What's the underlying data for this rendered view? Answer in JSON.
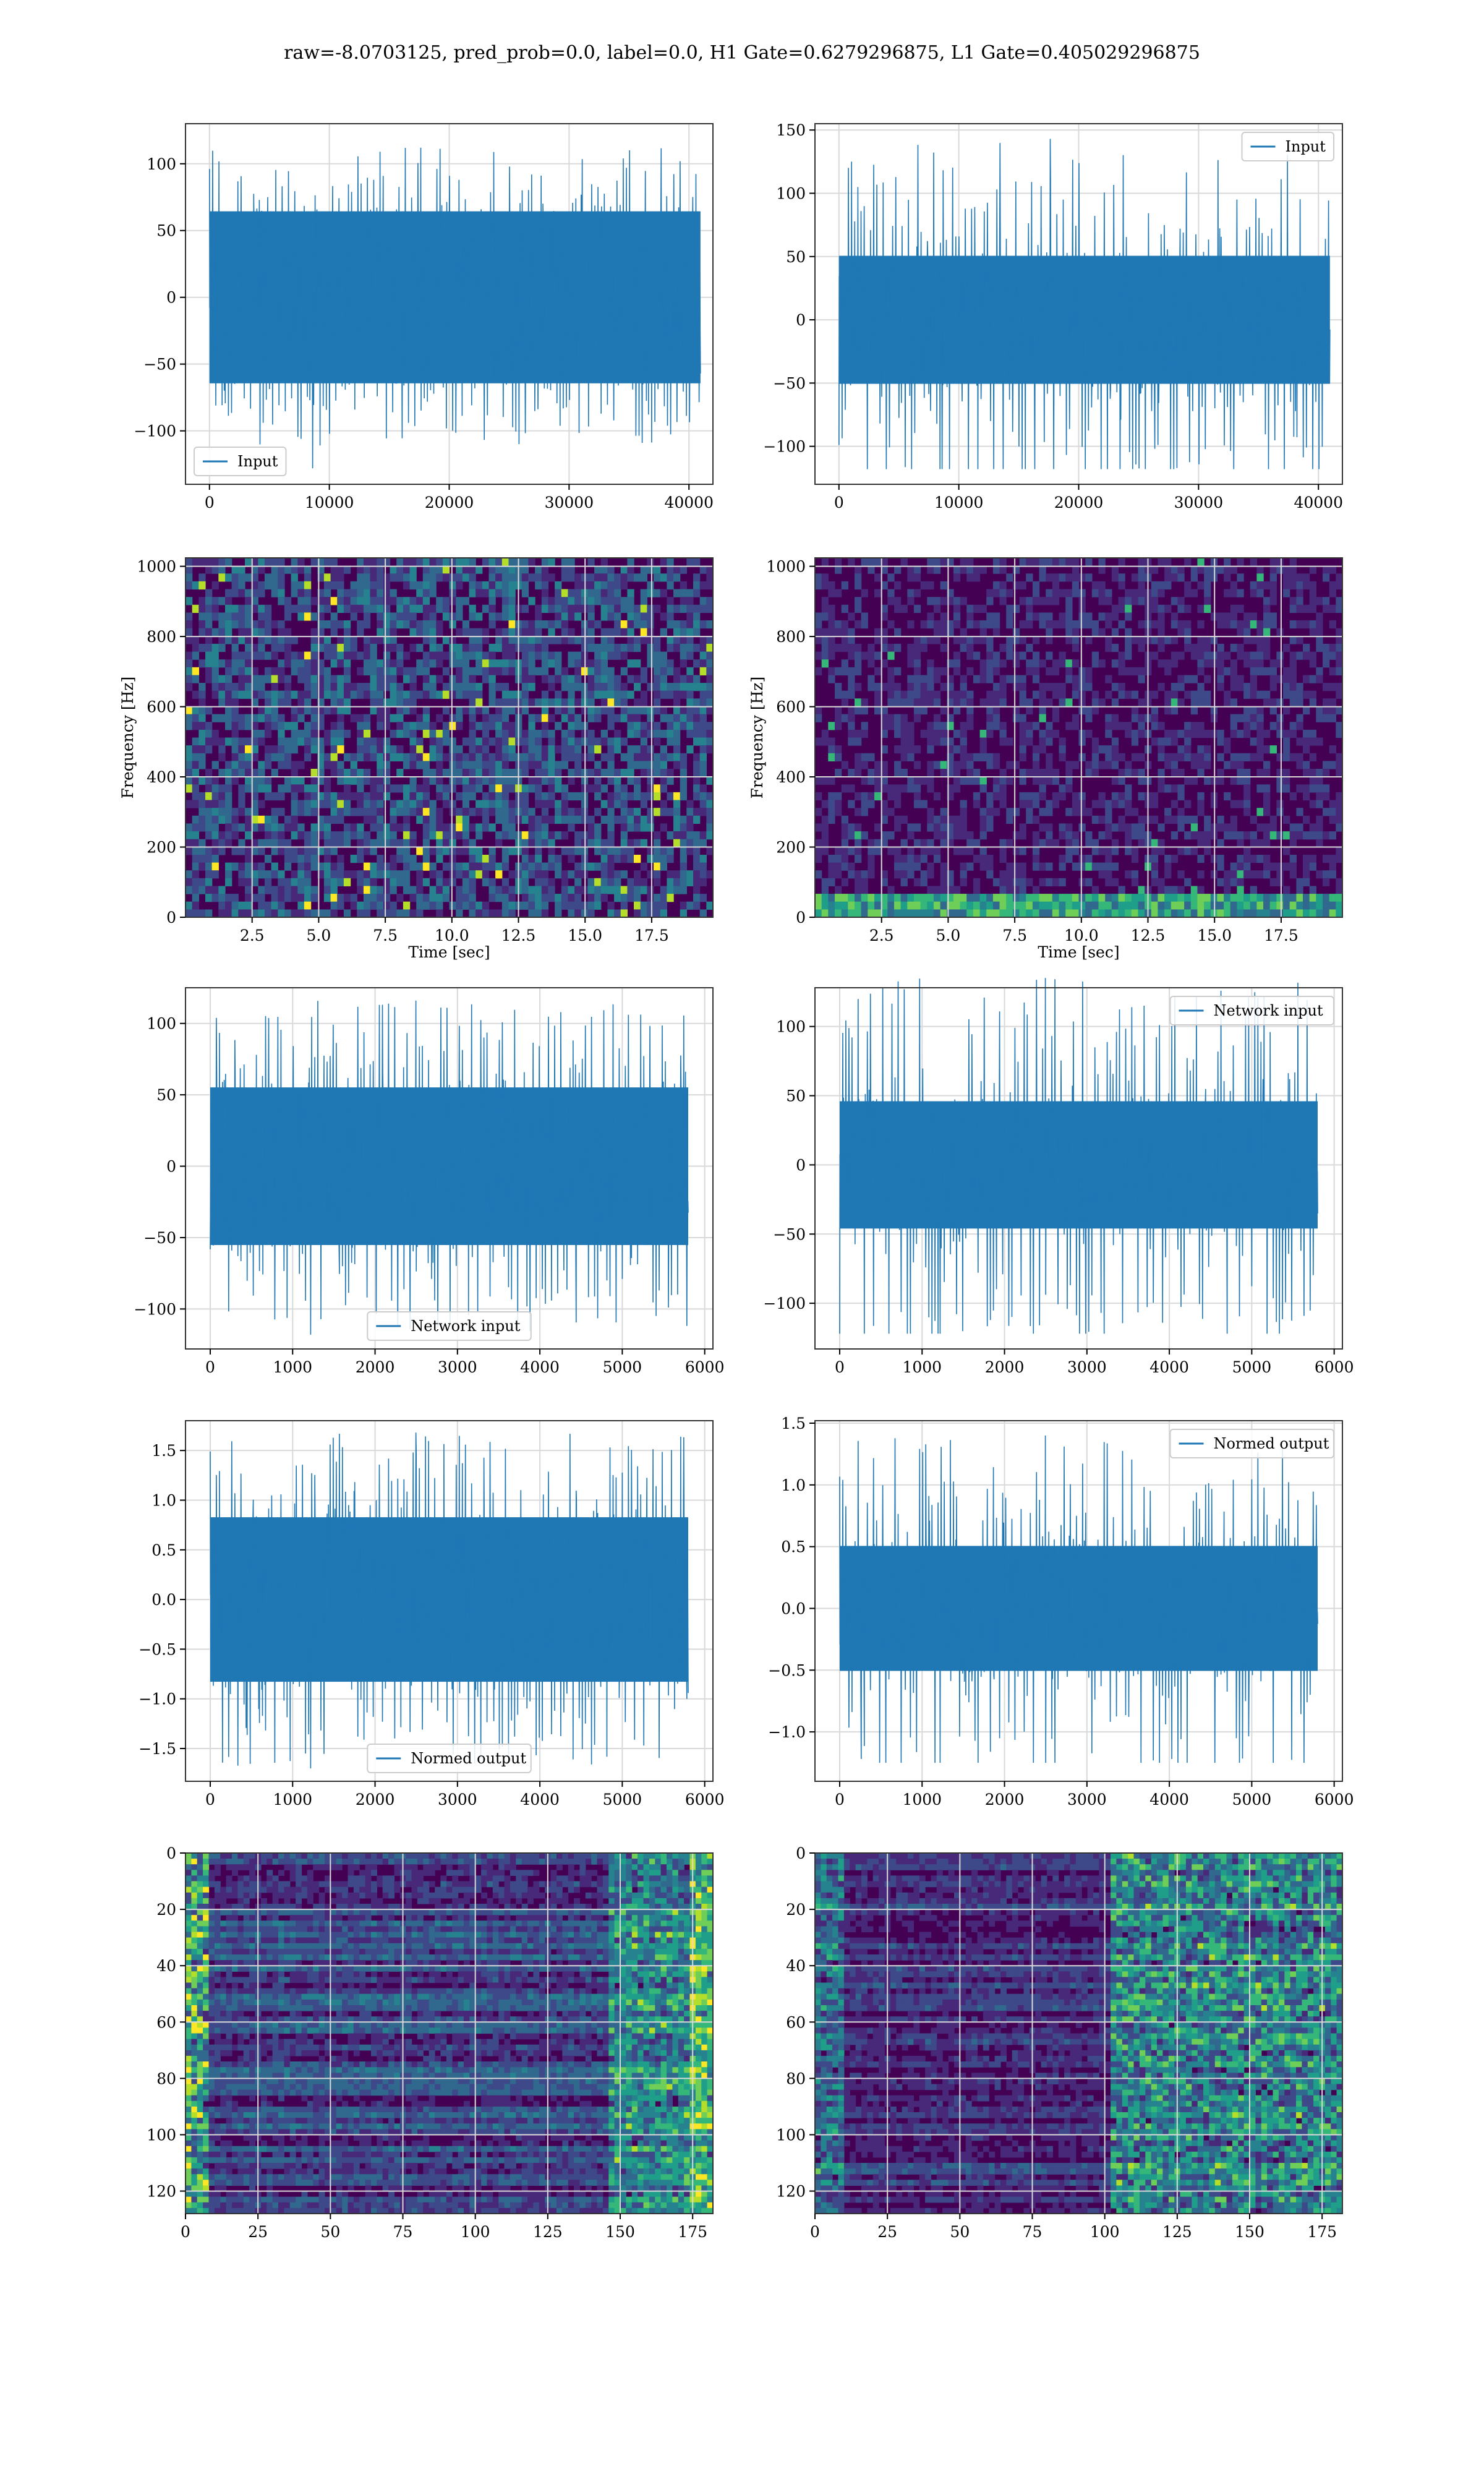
{
  "suptitle": "raw=-8.0703125, pred_prob=0.0, label=0.0, H1 Gate=0.6279296875, L1 Gate=0.405029296875",
  "colors": {
    "line": "#1f77b4",
    "grid": "#d9d9d9",
    "viridis": [
      "#440154",
      "#482878",
      "#3e4989",
      "#31688e",
      "#26828e",
      "#1f9e89",
      "#35b779",
      "#6ece58",
      "#b5de2b",
      "#fde725"
    ]
  },
  "chart_data": [
    {
      "id": "h1-input",
      "type": "line",
      "legend": "Input",
      "legend_loc": "lower-left",
      "xlim": [
        -2000,
        42000
      ],
      "ylim": [
        -140,
        130
      ],
      "xticks": [
        0,
        10000,
        20000,
        30000,
        40000
      ],
      "yticks": [
        -100,
        -50,
        0,
        50,
        100
      ],
      "xdomain": [
        0,
        40960
      ],
      "series": [
        {
          "name": "Input",
          "amplitude": 28,
          "peak_max": 112,
          "peak_min": -128
        }
      ]
    },
    {
      "id": "l1-input",
      "type": "line",
      "legend": "Input",
      "legend_loc": "upper-right",
      "xlim": [
        -2000,
        42000
      ],
      "ylim": [
        -130,
        155
      ],
      "xticks": [
        0,
        10000,
        20000,
        30000,
        40000
      ],
      "yticks": [
        -100,
        -50,
        0,
        50,
        100,
        150
      ],
      "xdomain": [
        0,
        40960
      ],
      "series": [
        {
          "name": "Input",
          "amplitude": 22,
          "peak_max": 143,
          "peak_min": -118
        }
      ]
    },
    {
      "id": "h1-spectrogram",
      "type": "heatmap",
      "xlabel": "Time [sec]",
      "ylabel": "Frequency [Hz]",
      "xlim": [
        0,
        19.8
      ],
      "ylim": [
        0,
        1024
      ],
      "xticks": [
        2.5,
        5.0,
        7.5,
        10.0,
        12.5,
        15.0,
        17.5
      ],
      "yticks": [
        0,
        200,
        400,
        600,
        800,
        1000
      ],
      "intensity": "moderate, uniform noise with bright speckles"
    },
    {
      "id": "l1-spectrogram",
      "type": "heatmap",
      "xlabel": "Time [sec]",
      "ylabel": "Frequency [Hz]",
      "xlim": [
        0,
        19.8
      ],
      "ylim": [
        0,
        1024
      ],
      "xticks": [
        2.5,
        5.0,
        7.5,
        10.0,
        12.5,
        15.0,
        17.5
      ],
      "yticks": [
        0,
        200,
        400,
        600,
        800,
        1000
      ],
      "intensity": "low, with brighter band near 0-40 Hz"
    },
    {
      "id": "h1-network-input",
      "type": "line",
      "legend": "Network input",
      "legend_loc": "lower-center",
      "xlim": [
        -300,
        6100
      ],
      "ylim": [
        -128,
        125
      ],
      "xticks": [
        0,
        1000,
        2000,
        3000,
        4000,
        5000,
        6000
      ],
      "yticks": [
        -100,
        -50,
        0,
        50,
        100
      ],
      "xdomain": [
        0,
        5800
      ],
      "series": [
        {
          "name": "Network input",
          "amplitude": 24,
          "peak_max": 116,
          "peak_min": -118
        }
      ]
    },
    {
      "id": "l1-network-input",
      "type": "line",
      "legend": "Network input",
      "legend_loc": "upper-right",
      "xlim": [
        -300,
        6100
      ],
      "ylim": [
        -133,
        128
      ],
      "xticks": [
        0,
        1000,
        2000,
        3000,
        4000,
        5000,
        6000
      ],
      "yticks": [
        -100,
        -50,
        0,
        50,
        100
      ],
      "xdomain": [
        0,
        5800
      ],
      "series": [
        {
          "name": "Network input",
          "amplitude": 20,
          "peak_max": 135,
          "peak_min": -122
        }
      ]
    },
    {
      "id": "h1-normed-output",
      "type": "line",
      "legend": "Normed output",
      "legend_loc": "lower-center",
      "xlim": [
        -300,
        6100
      ],
      "ylim": [
        -1.83,
        1.8
      ],
      "xticks": [
        0,
        1000,
        2000,
        3000,
        4000,
        5000,
        6000
      ],
      "yticks": [
        -1.5,
        -1.0,
        -0.5,
        0.0,
        0.5,
        1.0,
        1.5
      ],
      "ytick_labels": [
        "−1.5",
        "−1.0",
        "−0.5",
        "0.0",
        "0.5",
        "1.0",
        "1.5"
      ],
      "xdomain": [
        0,
        5800
      ],
      "series": [
        {
          "name": "Normed output",
          "amplitude": 0.36,
          "peak_max": 1.68,
          "peak_min": -1.7
        }
      ]
    },
    {
      "id": "l1-normed-output",
      "type": "line",
      "legend": "Normed output",
      "legend_loc": "upper-right",
      "xlim": [
        -300,
        6100
      ],
      "ylim": [
        -1.4,
        1.52
      ],
      "xticks": [
        0,
        1000,
        2000,
        3000,
        4000,
        5000,
        6000
      ],
      "yticks": [
        -1.0,
        -0.5,
        0.0,
        0.5,
        1.0,
        1.5
      ],
      "ytick_labels": [
        "−1.0",
        "−0.5",
        "0.0",
        "0.5",
        "1.0",
        "1.5"
      ],
      "xdomain": [
        0,
        5800
      ],
      "series": [
        {
          "name": "Normed output",
          "amplitude": 0.22,
          "peak_max": 1.4,
          "peak_min": -1.25
        }
      ]
    },
    {
      "id": "h1-feature-map",
      "type": "heatmap",
      "xlim": [
        0,
        182
      ],
      "ylim": [
        128,
        0
      ],
      "xticks": [
        0,
        25,
        50,
        75,
        100,
        125,
        150,
        175
      ],
      "yticks": [
        0,
        20,
        40,
        60,
        80,
        100,
        120
      ],
      "intensity": "bright bands at left edge and right edge"
    },
    {
      "id": "l1-feature-map",
      "type": "heatmap",
      "xlim": [
        0,
        182
      ],
      "ylim": [
        128,
        0
      ],
      "xticks": [
        0,
        25,
        50,
        75,
        100,
        125,
        150,
        175
      ],
      "yticks": [
        0,
        20,
        40,
        60,
        80,
        100,
        120
      ],
      "intensity": "activity concentrated at columns 100-180"
    }
  ]
}
